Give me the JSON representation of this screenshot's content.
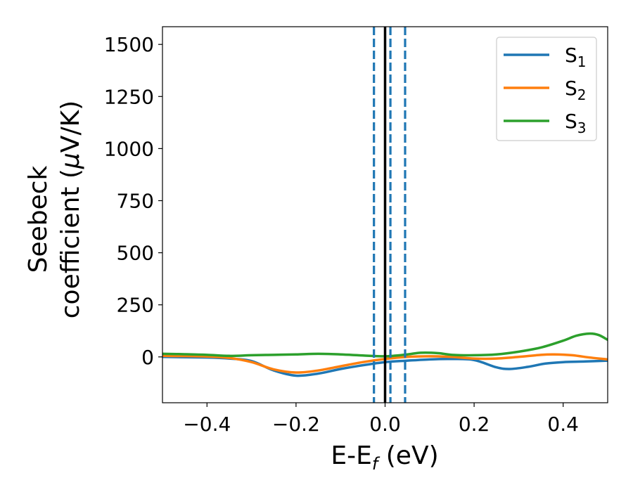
{
  "chart_data": {
    "type": "line",
    "xlabel": "E-E",
    "xlabel_sub": "f",
    "xlabel_unit": " (eV)",
    "ylabel_line1": "Seebeck",
    "ylabel_line2_pre": "coefficient  (",
    "ylabel_mu": "μ",
    "ylabel_line2_post": "V/K)",
    "xlim": [
      -0.5,
      0.5
    ],
    "ylim": [
      -220,
      1585
    ],
    "xticks": [
      -0.4,
      -0.2,
      0.0,
      0.2,
      0.4
    ],
    "xtick_labels": [
      "−0.4",
      "−0.2",
      "0.0",
      "0.2",
      "0.4"
    ],
    "yticks": [
      0,
      250,
      500,
      750,
      1000,
      1250,
      1500
    ],
    "ytick_labels": [
      "0",
      "250",
      "500",
      "750",
      "1000",
      "1250",
      "1500"
    ],
    "grid": false,
    "legend_position": "top-right",
    "vlines": [
      {
        "x": 0.0,
        "style": "solid",
        "color": "#000000"
      },
      {
        "x": -0.025,
        "style": "dashed",
        "color": "#1f77b4"
      },
      {
        "x": 0.012,
        "style": "dashed",
        "color": "#1f77b4"
      },
      {
        "x": 0.045,
        "style": "dashed",
        "color": "#1f77b4"
      }
    ],
    "series": [
      {
        "name": "S",
        "sub": "1",
        "color": "#1f77b4",
        "x": [
          -0.5,
          -0.4,
          -0.35,
          -0.3,
          -0.25,
          -0.2,
          -0.15,
          -0.1,
          -0.05,
          0.0,
          0.05,
          0.1,
          0.15,
          0.2,
          0.25,
          0.28,
          0.32,
          0.36,
          0.4,
          0.45,
          0.5
        ],
        "y": [
          0,
          -3,
          -8,
          -20,
          -65,
          -90,
          -80,
          -58,
          -40,
          -25,
          -18,
          -12,
          -10,
          -15,
          -50,
          -58,
          -48,
          -32,
          -25,
          -22,
          -18
        ]
      },
      {
        "name": "S",
        "sub": "2",
        "color": "#ff7f0e",
        "x": [
          -0.5,
          -0.4,
          -0.35,
          -0.3,
          -0.25,
          -0.2,
          -0.15,
          -0.1,
          -0.05,
          0.0,
          0.05,
          0.1,
          0.15,
          0.2,
          0.25,
          0.3,
          0.35,
          0.38,
          0.42,
          0.46,
          0.5
        ],
        "y": [
          5,
          2,
          -5,
          -25,
          -60,
          -75,
          -65,
          -45,
          -25,
          -10,
          0,
          3,
          0,
          -8,
          -8,
          0,
          10,
          12,
          8,
          -3,
          -12
        ]
      },
      {
        "name": "S",
        "sub": "3",
        "color": "#2ca02c",
        "x": [
          -0.5,
          -0.45,
          -0.4,
          -0.35,
          -0.3,
          -0.25,
          -0.2,
          -0.15,
          -0.1,
          -0.05,
          0.0,
          0.05,
          0.08,
          0.12,
          0.15,
          0.2,
          0.25,
          0.3,
          0.35,
          0.4,
          0.43,
          0.46,
          0.48,
          0.5
        ],
        "y": [
          15,
          13,
          10,
          5,
          8,
          10,
          12,
          15,
          12,
          7,
          3,
          12,
          20,
          18,
          10,
          8,
          12,
          25,
          45,
          78,
          102,
          112,
          105,
          82
        ]
      }
    ]
  }
}
